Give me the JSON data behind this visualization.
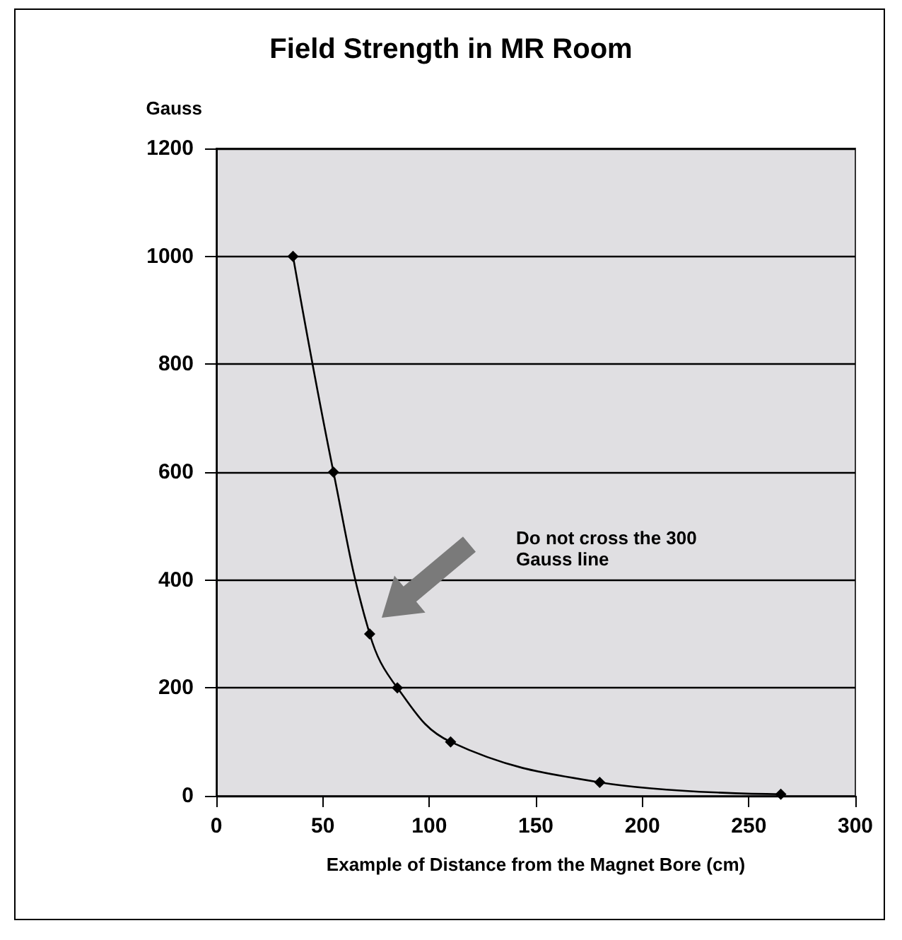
{
  "chart_data": {
    "type": "line",
    "title": "Field Strength in MR Room",
    "xlabel": "Example of Distance from the Magnet Bore (cm)",
    "ylabel": "Gauss",
    "x": [
      36,
      55,
      72,
      85,
      110,
      180,
      265
    ],
    "series": [
      {
        "color": "#000000",
        "values": [
          1000,
          600,
          300,
          200,
          100,
          25,
          3
        ]
      }
    ],
    "xlim": [
      0,
      300
    ],
    "xticks": [
      0,
      50,
      100,
      150,
      200,
      250,
      300
    ],
    "ylim": [
      0,
      1200
    ],
    "yticks": [
      0,
      200,
      400,
      600,
      800,
      1000,
      1200
    ],
    "grid": "y",
    "marker": "diamond",
    "line_style": "solid",
    "annotations": [
      "Do not cross the 300 Gauss line"
    ]
  }
}
